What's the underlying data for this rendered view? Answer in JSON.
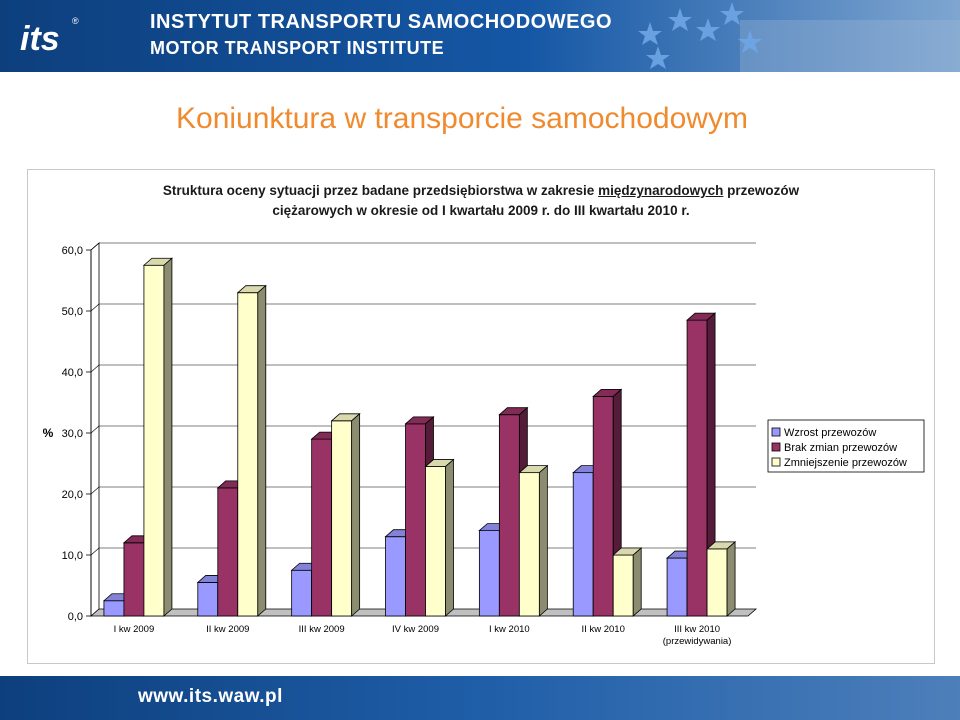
{
  "header": {
    "line1": "INSTYTUT TRANSPORTU SAMOCHODOWEGO",
    "line2": "MOTOR TRANSPORT INSTITUTE",
    "logo_text": "its",
    "logo_mark": "®"
  },
  "slide": {
    "title": "Koniunktura w transporcie samochodowym"
  },
  "footer": {
    "url": "www.its.waw.pl"
  },
  "chart_data": {
    "type": "bar",
    "title_parts": {
      "before": "Struktura oceny sytuacji przez badane przedsiębiorstwa w zakresie ",
      "underlined": "międzynarodowych",
      "after": " przewozów",
      "line2": "ciężarowych w okresie od I kwartału 2009 r. do III kwartału 2010 r."
    },
    "ylabel": "%",
    "xlabel": "",
    "ylim": [
      0,
      60
    ],
    "yticks": [
      "0,0",
      "10,0",
      "20,0",
      "30,0",
      "40,0",
      "50,0",
      "60,0"
    ],
    "categories": [
      [
        "I kw 2009"
      ],
      [
        "II kw 2009"
      ],
      [
        "III kw 2009"
      ],
      [
        "IV kw 2009"
      ],
      [
        "I kw 2010"
      ],
      [
        "II kw 2010"
      ],
      [
        "III kw 2010",
        "(przewidywania)"
      ]
    ],
    "series": [
      {
        "name": "Wzrost przewozów",
        "color": "#9999ff",
        "values": [
          2.5,
          5.5,
          7.5,
          13.0,
          14.0,
          23.5,
          9.5
        ]
      },
      {
        "name": "Brak zmian przewozów",
        "color": "#993366",
        "values": [
          12.0,
          21.0,
          29.0,
          31.5,
          33.0,
          36.0,
          48.5
        ]
      },
      {
        "name": "Zmniejszenie przewozów",
        "color": "#ffffcc",
        "values": [
          57.5,
          53.0,
          32.0,
          24.5,
          23.5,
          10.0,
          11.0
        ]
      }
    ],
    "grid": true,
    "legend_position": "right"
  }
}
